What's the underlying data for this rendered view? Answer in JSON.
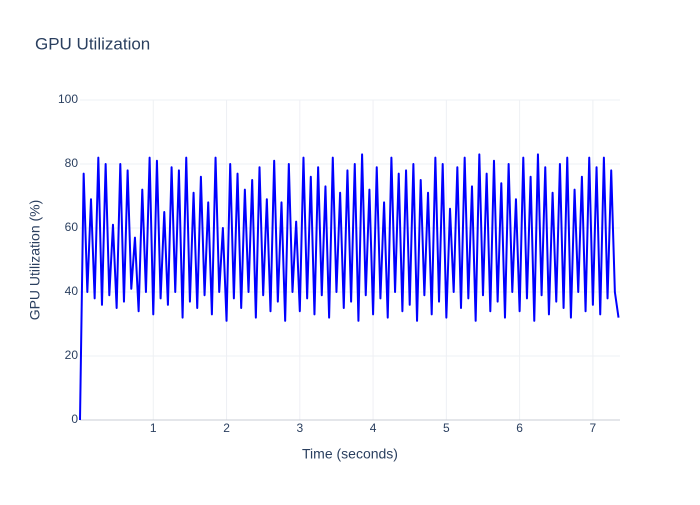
{
  "chart_data": {
    "type": "line",
    "title": "GPU Utilization",
    "x_label": "Time (seconds)",
    "y_label": "GPU Utilization (%)",
    "x": [
      0,
      0.05,
      0.1,
      0.15,
      0.2,
      0.25,
      0.3,
      0.35,
      0.4,
      0.45,
      0.5,
      0.55,
      0.6,
      0.65,
      0.7,
      0.75,
      0.8,
      0.85,
      0.9,
      0.95,
      1,
      1.05,
      1.1,
      1.15,
      1.2,
      1.25,
      1.3,
      1.35,
      1.4,
      1.45,
      1.5,
      1.55,
      1.6,
      1.65,
      1.7,
      1.75,
      1.8,
      1.85,
      1.9,
      1.95,
      2,
      2.05,
      2.1,
      2.15,
      2.2,
      2.25,
      2.3,
      2.35,
      2.4,
      2.45,
      2.5,
      2.55,
      2.6,
      2.65,
      2.7,
      2.75,
      2.8,
      2.85,
      2.9,
      2.95,
      3,
      3.05,
      3.1,
      3.15,
      3.2,
      3.25,
      3.3,
      3.35,
      3.4,
      3.45,
      3.5,
      3.55,
      3.6,
      3.65,
      3.7,
      3.75,
      3.8,
      3.85,
      3.9,
      3.95,
      4,
      4.05,
      4.1,
      4.15,
      4.2,
      4.25,
      4.3,
      4.35,
      4.4,
      4.45,
      4.5,
      4.55,
      4.6,
      4.65,
      4.7,
      4.75,
      4.8,
      4.85,
      4.9,
      4.95,
      5,
      5.05,
      5.1,
      5.15,
      5.2,
      5.25,
      5.3,
      5.35,
      5.4,
      5.45,
      5.5,
      5.55,
      5.6,
      5.65,
      5.7,
      5.75,
      5.8,
      5.85,
      5.9,
      5.95,
      6,
      6.05,
      6.1,
      6.15,
      6.2,
      6.25,
      6.3,
      6.35,
      6.4,
      6.45,
      6.5,
      6.55,
      6.6,
      6.65,
      6.7,
      6.75,
      6.8,
      6.85,
      6.9,
      6.95,
      7,
      7.05,
      7.1,
      7.15,
      7.2,
      7.25,
      7.3,
      7.35
    ],
    "series": [
      {
        "name": "GPU Utilization",
        "color": "#0000ff",
        "values": [
          0,
          77,
          40,
          69,
          38,
          82,
          36,
          80,
          39,
          61,
          35,
          80,
          37,
          78,
          41,
          57,
          34,
          72,
          40,
          82,
          33,
          81,
          38,
          65,
          36,
          79,
          40,
          78,
          32,
          82,
          37,
          71,
          35,
          76,
          39,
          68,
          33,
          82,
          40,
          60,
          31,
          80,
          38,
          77,
          35,
          72,
          40,
          75,
          32,
          79,
          39,
          69,
          34,
          81,
          37,
          68,
          31,
          80,
          40,
          62,
          34,
          82,
          38,
          76,
          33,
          79,
          39,
          73,
          32,
          82,
          40,
          71,
          35,
          78,
          37,
          80,
          31,
          83,
          39,
          72,
          33,
          79,
          38,
          68,
          32,
          82,
          40,
          77,
          34,
          78,
          36,
          80,
          31,
          75,
          39,
          71,
          33,
          82,
          37,
          80,
          32,
          66,
          40,
          79,
          35,
          82,
          38,
          73,
          31,
          83,
          39,
          77,
          34,
          81,
          37,
          74,
          32,
          80,
          40,
          69,
          34,
          82,
          38,
          76,
          31,
          83,
          39,
          79,
          33,
          71,
          37,
          80,
          35,
          82,
          32,
          72,
          40,
          76,
          34,
          82,
          36,
          79,
          33,
          82,
          38,
          78,
          40,
          32
        ]
      }
    ],
    "xlim": [
      0,
      7.37
    ],
    "ylim": [
      0,
      100
    ],
    "xticks": [
      1,
      2,
      3,
      4,
      5,
      6,
      7
    ],
    "yticks": [
      0,
      20,
      40,
      60,
      80,
      100
    ],
    "grid": true
  }
}
